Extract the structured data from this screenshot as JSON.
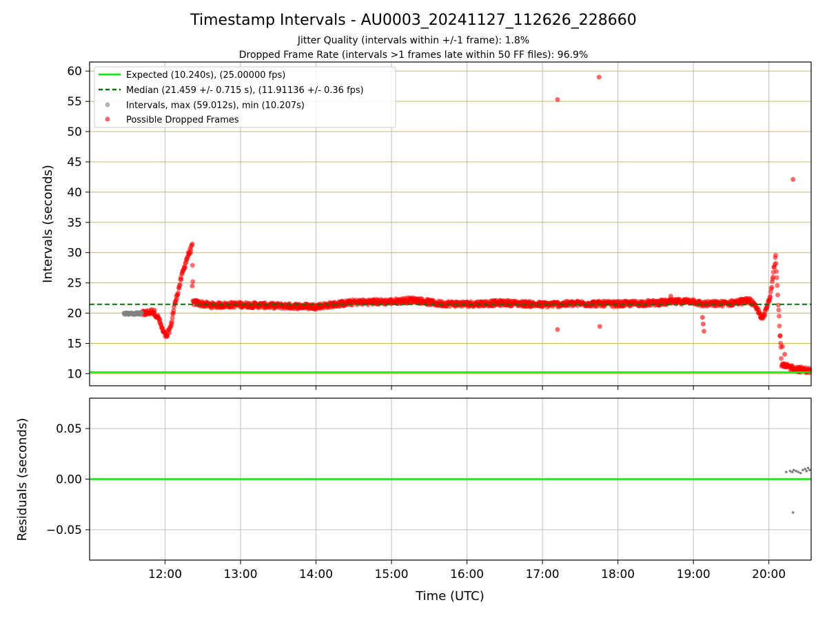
{
  "figure": {
    "title": "Timestamp Intervals - AU0003_20241127_112626_228660",
    "subtitle_line1": "Jitter Quality (intervals within +/-1 frame): 1.8%",
    "subtitle_line2": "Dropped Frame Rate (intervals >1 frames late within 50 FF files): 96.9%"
  },
  "colors": {
    "expected": "#00ee00",
    "median": "#007700",
    "intervals": "#808080",
    "dropped": "#ff0000",
    "hgrid_top": "#c8b46a",
    "grid": "#bfbfbf"
  },
  "chart_data": [
    {
      "type": "scatter",
      "ylabel": "Intervals (seconds)",
      "xlabel": "",
      "x_unit": "hours UTC",
      "xlim": [
        11.0,
        20.56
      ],
      "ylim": [
        8.0,
        61.5
      ],
      "xticks": [
        12,
        13,
        14,
        15,
        16,
        17,
        18,
        19,
        20
      ],
      "xtick_labels": [
        "12:00",
        "13:00",
        "14:00",
        "15:00",
        "16:00",
        "17:00",
        "18:00",
        "19:00",
        "20:00"
      ],
      "yticks": [
        10,
        15,
        20,
        25,
        30,
        35,
        40,
        45,
        50,
        55,
        60
      ],
      "ytick_labels": [
        "10",
        "15",
        "20",
        "25",
        "30",
        "35",
        "40",
        "45",
        "50",
        "55",
        "60"
      ],
      "grid": true,
      "legend_position": "top-left",
      "legend": [
        "Expected (10.240s), (25.00000 fps)",
        "Median (21.459 +/- 0.715 s), (11.91136 +/- 0.36 fps)",
        "Intervals, max (59.012s), min (10.207s)",
        "Possible Dropped Frames"
      ],
      "expected_line": 10.24,
      "median_line": 21.459,
      "series": [
        {
          "name": "Intervals, max (59.012s), min (10.207s)",
          "points": [
            [
              11.47,
              19.9
            ],
            [
              11.5,
              19.95
            ],
            [
              11.53,
              19.85
            ],
            [
              11.56,
              19.95
            ],
            [
              11.59,
              19.9
            ],
            [
              11.62,
              20.0
            ],
            [
              11.65,
              19.9
            ],
            [
              11.68,
              20.0
            ]
          ]
        },
        {
          "name": "Possible Dropped Frames",
          "trend": [
            [
              11.7,
              19.9
            ],
            [
              11.85,
              20.3
            ],
            [
              11.92,
              19.0
            ],
            [
              11.97,
              17.0
            ],
            [
              12.02,
              16.0
            ],
            [
              12.08,
              18.0
            ],
            [
              12.12,
              21.0
            ],
            [
              12.18,
              24.0
            ],
            [
              12.24,
              27.0
            ],
            [
              12.3,
              29.5
            ],
            [
              12.36,
              31.0
            ],
            [
              12.37,
              21.8
            ],
            [
              12.6,
              21.3
            ],
            [
              13.0,
              21.4
            ],
            [
              13.5,
              21.2
            ],
            [
              14.0,
              21.1
            ],
            [
              14.5,
              21.8
            ],
            [
              15.0,
              21.9
            ],
            [
              15.3,
              22.2
            ],
            [
              15.6,
              21.6
            ],
            [
              16.0,
              21.5
            ],
            [
              16.5,
              21.7
            ],
            [
              17.0,
              21.4
            ],
            [
              17.5,
              21.6
            ],
            [
              18.0,
              21.5
            ],
            [
              18.5,
              21.7
            ],
            [
              19.0,
              22.0
            ],
            [
              19.1,
              21.5
            ],
            [
              19.45,
              21.6
            ],
            [
              19.75,
              22.1
            ],
            [
              19.85,
              20.5
            ],
            [
              19.92,
              19.0
            ],
            [
              19.97,
              20.8
            ],
            [
              20.02,
              23.0
            ],
            [
              20.06,
              27.0
            ],
            [
              20.09,
              29.5
            ],
            [
              20.13,
              20.5
            ],
            [
              20.17,
              11.3
            ],
            [
              20.3,
              11.0
            ],
            [
              20.4,
              10.7
            ],
            [
              20.55,
              10.5
            ]
          ],
          "outliers": [
            [
              17.2,
              55.3
            ],
            [
              17.75,
              59.0
            ],
            [
              20.32,
              42.1
            ],
            [
              17.2,
              17.3
            ],
            [
              17.76,
              17.8
            ],
            [
              18.7,
              22.8
            ],
            [
              12.36,
              24.5
            ],
            [
              19.14,
              17.0
            ],
            [
              19.13,
              18.2
            ],
            [
              19.12,
              19.3
            ],
            [
              20.15,
              16.3
            ],
            [
              20.18,
              14.5
            ],
            [
              20.21,
              13.2
            ]
          ]
        }
      ]
    },
    {
      "type": "scatter",
      "ylabel": "Residuals (seconds)",
      "xlabel": "Time (UTC)",
      "x_unit": "hours UTC",
      "xlim": [
        11.0,
        20.56
      ],
      "ylim": [
        -0.08,
        0.08
      ],
      "xticks": [
        12,
        13,
        14,
        15,
        16,
        17,
        18,
        19,
        20
      ],
      "xtick_labels": [
        "12:00",
        "13:00",
        "14:00",
        "15:00",
        "16:00",
        "17:00",
        "18:00",
        "19:00",
        "20:00"
      ],
      "yticks": [
        0.05,
        0.0,
        -0.05
      ],
      "ytick_labels": [
        "0.05",
        "0.00",
        "−0.05"
      ],
      "grid": true,
      "zero_line": 0.0,
      "series": [
        {
          "name": "",
          "points": [
            [
              20.23,
              0.007
            ],
            [
              20.28,
              0.008
            ],
            [
              20.31,
              0.007
            ],
            [
              20.33,
              0.009
            ],
            [
              20.36,
              0.008
            ],
            [
              20.39,
              0.007
            ],
            [
              20.42,
              0.006
            ],
            [
              20.45,
              0.009
            ],
            [
              20.48,
              0.01
            ],
            [
              20.5,
              0.008
            ],
            [
              20.52,
              0.011
            ],
            [
              20.54,
              0.009
            ],
            [
              20.32,
              -0.033
            ]
          ]
        }
      ]
    }
  ]
}
